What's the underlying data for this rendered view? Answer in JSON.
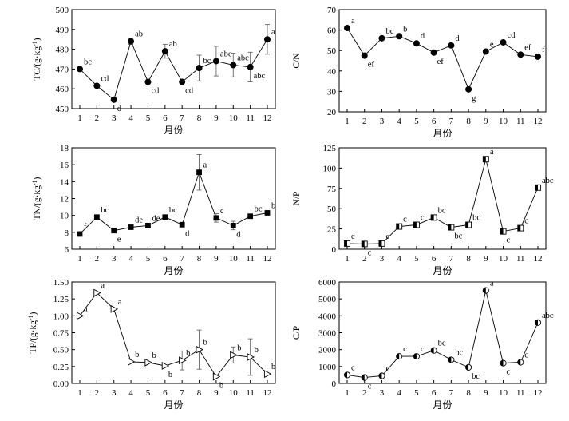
{
  "figure": {
    "description_text": ""
  },
  "chart_data": [
    {
      "id": "tc",
      "type": "line",
      "marker": "circle",
      "ylabel": "TC/(g·kg⁻¹)",
      "ylabel_parts": [
        "TC/(g·kg",
        "-1",
        ")"
      ],
      "xlabel": "月份",
      "ylim": [
        450,
        500
      ],
      "yticks": [
        450,
        460,
        470,
        480,
        490,
        500
      ],
      "x": [
        1,
        2,
        3,
        4,
        5,
        6,
        7,
        8,
        9,
        10,
        11,
        12
      ],
      "values": [
        470,
        461.5,
        454.5,
        484,
        463.5,
        479,
        463.5,
        470.5,
        474,
        472,
        471,
        485
      ],
      "errors": [
        0,
        0,
        0,
        1.5,
        0,
        3.5,
        0,
        6.5,
        7.5,
        6,
        7.5,
        7.5
      ],
      "labels": [
        "bc",
        "cd",
        "d",
        "ab",
        "cd",
        "ab",
        "cd",
        "bc",
        "abc",
        "abc",
        "abc",
        "a"
      ]
    },
    {
      "id": "cn",
      "type": "line",
      "marker": "circle",
      "ylabel": "C/N",
      "ylabel_parts": [
        "C/N",
        "",
        ""
      ],
      "xlabel": "月份",
      "ylim": [
        20,
        70
      ],
      "yticks": [
        20,
        30,
        40,
        50,
        60,
        70
      ],
      "x": [
        1,
        2,
        3,
        4,
        5,
        6,
        7,
        8,
        9,
        10,
        11,
        12
      ],
      "values": [
        61,
        47.5,
        56,
        57,
        53.5,
        49,
        52.5,
        31,
        49.5,
        54,
        48,
        47
      ],
      "errors": [
        0,
        0,
        0,
        0,
        0,
        0,
        0,
        0,
        0,
        0,
        0,
        0
      ],
      "labels": [
        "a",
        "ef",
        "bc",
        "b",
        "d",
        "ef",
        "d",
        "g",
        "e",
        "cd",
        "ef",
        "f"
      ]
    },
    {
      "id": "tn",
      "type": "line",
      "marker": "square",
      "ylabel": "TN/(g·kg⁻¹)",
      "ylabel_parts": [
        "TN/(g·kg",
        "-1",
        ")"
      ],
      "xlabel": "月份",
      "ylim": [
        6,
        18
      ],
      "yticks": [
        6,
        8,
        10,
        12,
        14,
        16,
        18
      ],
      "x": [
        1,
        2,
        3,
        4,
        5,
        6,
        7,
        8,
        9,
        10,
        11,
        12
      ],
      "values": [
        7.8,
        9.8,
        8.2,
        8.6,
        8.8,
        9.8,
        8.9,
        15.1,
        9.7,
        8.8,
        9.9,
        10.3
      ],
      "errors": [
        0,
        0,
        0,
        0,
        0,
        0,
        0,
        2.1,
        0.5,
        0.5,
        0,
        0
      ],
      "labels": [
        "f",
        "bc",
        "e",
        "de",
        "de",
        "bc",
        "d",
        "a",
        "c",
        "d",
        "bc",
        "b"
      ]
    },
    {
      "id": "np",
      "type": "line",
      "marker": "half-square",
      "ylabel": "N/P",
      "ylabel_parts": [
        "N/P",
        "",
        ""
      ],
      "xlabel": "月份",
      "ylim": [
        0,
        125
      ],
      "yticks": [
        0,
        25,
        50,
        75,
        100,
        125
      ],
      "x": [
        1,
        2,
        3,
        4,
        5,
        6,
        7,
        8,
        9,
        10,
        11,
        12
      ],
      "values": [
        7,
        6.5,
        7,
        28,
        30,
        39,
        27,
        30,
        111,
        22,
        26,
        76
      ],
      "errors": [
        0,
        0,
        0,
        0,
        0,
        0,
        0,
        0,
        0,
        0,
        0,
        0
      ],
      "labels": [
        "c",
        "c",
        "c",
        "c",
        "c",
        "bc",
        "bc",
        "bc",
        "a",
        "c",
        "c",
        "abc"
      ]
    },
    {
      "id": "tp",
      "type": "line",
      "marker": "triangle-right",
      "ylabel": "TP/(g·kg⁻¹)",
      "ylabel_parts": [
        "TP/(g·kg",
        "-1",
        ")"
      ],
      "xlabel": "月份",
      "ylim": [
        0,
        1.5
      ],
      "yticks": [
        0,
        0.25,
        0.5,
        0.75,
        1.0,
        1.25,
        1.5
      ],
      "ytick_labels": [
        "0.00",
        "0.25",
        "0.50",
        "0.75",
        "1.00",
        "1.25",
        "1.50"
      ],
      "x": [
        1,
        2,
        3,
        4,
        5,
        6,
        7,
        8,
        9,
        10,
        11,
        12
      ],
      "values": [
        1.0,
        1.34,
        1.1,
        0.32,
        0.31,
        0.26,
        0.34,
        0.5,
        0.1,
        0.42,
        0.39,
        0.14
      ],
      "errors": [
        0,
        0,
        0,
        0,
        0,
        0,
        0.14,
        0.29,
        0,
        0.12,
        0.27,
        0
      ],
      "labels": [
        "a",
        "a",
        "a",
        "b",
        "b",
        "b",
        "b",
        "b",
        "b",
        "b",
        "b",
        "b"
      ]
    },
    {
      "id": "cp",
      "type": "line",
      "marker": "half-circle",
      "ylabel": "C/P",
      "ylabel_parts": [
        "C/P",
        "",
        ""
      ],
      "xlabel": "月份",
      "ylim": [
        0,
        6000
      ],
      "yticks": [
        0,
        1000,
        2000,
        3000,
        4000,
        5000,
        6000
      ],
      "x": [
        1,
        2,
        3,
        4,
        5,
        6,
        7,
        8,
        9,
        10,
        11,
        12
      ],
      "values": [
        500,
        350,
        450,
        1600,
        1600,
        1950,
        1400,
        950,
        5500,
        1200,
        1250,
        3600
      ],
      "errors": [
        0,
        0,
        0,
        0,
        0,
        0,
        0,
        0,
        0,
        0,
        0,
        0
      ],
      "labels": [
        "c",
        "c",
        "c",
        "c",
        "c",
        "bc",
        "bc",
        "bc",
        "a",
        "c",
        "c",
        "abc"
      ]
    }
  ]
}
